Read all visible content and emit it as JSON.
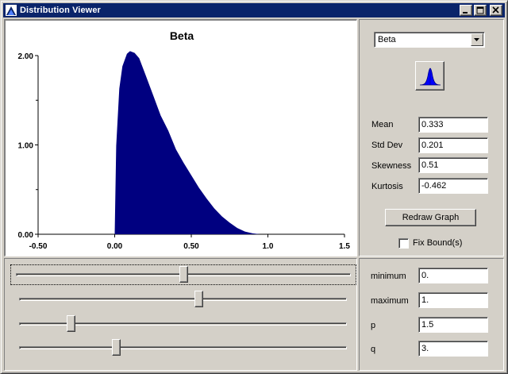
{
  "window": {
    "title": "Distribution Viewer",
    "title_bar_color": "#0a246a"
  },
  "chart_data": {
    "type": "area",
    "title": "Beta",
    "xlabel": "",
    "ylabel": "",
    "xlim": [
      -0.5,
      1.5
    ],
    "ylim": [
      0,
      2
    ],
    "x_ticks": [
      "-0.50",
      "0.00",
      "0.50",
      "1.0",
      "1.5"
    ],
    "y_ticks": [
      "0.00",
      "1.00",
      "2.00"
    ],
    "fill_color": "#000080",
    "series": [
      {
        "x": [
          0,
          0.01,
          0.03,
          0.05,
          0.08,
          0.1,
          0.13,
          0.16,
          0.2,
          0.25,
          0.3,
          0.35,
          0.4,
          0.45,
          0.5,
          0.55,
          0.6,
          0.65,
          0.7,
          0.75,
          0.8,
          0.85,
          0.9,
          0.95,
          1.0
        ],
        "y": [
          0,
          0.99,
          1.63,
          1.88,
          2.02,
          2.05,
          2.03,
          1.97,
          1.79,
          1.56,
          1.33,
          1.16,
          0.95,
          0.8,
          0.66,
          0.52,
          0.4,
          0.29,
          0.2,
          0.13,
          0.07,
          0.03,
          0.01,
          0,
          0
        ]
      }
    ]
  },
  "controls": {
    "distribution_select": "Beta",
    "distribution_icon": "bell-curve-icon",
    "stats": [
      {
        "label": "Mean",
        "value": "0.333"
      },
      {
        "label": "Std Dev",
        "value": "0.201"
      },
      {
        "label": "Skewness",
        "value": "0.51"
      },
      {
        "label": "Kurtosis",
        "value": "-0.462"
      }
    ],
    "redraw_label": "Redraw Graph",
    "fix_bounds_label": "Fix Bound(s)",
    "fix_bounds_checked": false
  },
  "params": [
    {
      "label": "minimum",
      "value": "0.",
      "slider_position": 0.5
    },
    {
      "label": "maximum",
      "value": "1.",
      "slider_position": 0.55
    },
    {
      "label": "p",
      "value": "1.5",
      "slider_position": 0.15
    },
    {
      "label": "q",
      "value": "3.",
      "slider_position": 0.29
    }
  ]
}
